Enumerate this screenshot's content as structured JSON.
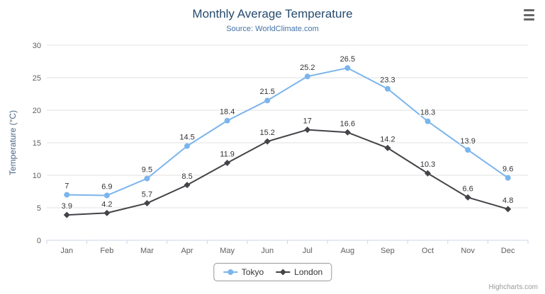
{
  "credits": "Highcharts.com",
  "colors": {
    "title": "#274b6d",
    "subtitle": "#4572a7",
    "y_axis_title": "#4a6785",
    "axis_label": "#606060",
    "grid": "#e0e0e0",
    "axis_line": "#ccd6eb",
    "data_label": "#333333",
    "legend_border": "#999999",
    "credits": "#999999",
    "menu_icon": "#666666",
    "tokyo": "#7cb5ec",
    "london": "#434348"
  },
  "chart_data": {
    "type": "line",
    "title": "Monthly Average Temperature",
    "subtitle": "Source: WorldClimate.com",
    "xlabel": "",
    "ylabel": "Temperature (°C)",
    "categories": [
      "Jan",
      "Feb",
      "Mar",
      "Apr",
      "May",
      "Jun",
      "Jul",
      "Aug",
      "Sep",
      "Oct",
      "Nov",
      "Dec"
    ],
    "series": [
      {
        "name": "Tokyo",
        "marker": "circle",
        "color": "#7cb5ec",
        "values": [
          7,
          6.9,
          9.5,
          14.5,
          18.4,
          21.5,
          25.2,
          26.5,
          23.3,
          18.3,
          13.9,
          9.6
        ]
      },
      {
        "name": "London",
        "marker": "diamond",
        "color": "#434348",
        "values": [
          3.9,
          4.2,
          5.7,
          8.5,
          11.9,
          15.2,
          17,
          16.6,
          14.2,
          10.3,
          6.6,
          4.8
        ]
      }
    ],
    "ylim": [
      0,
      30
    ],
    "ytick_interval": 5,
    "grid": true,
    "legend_position": "bottom",
    "data_labels": true
  }
}
